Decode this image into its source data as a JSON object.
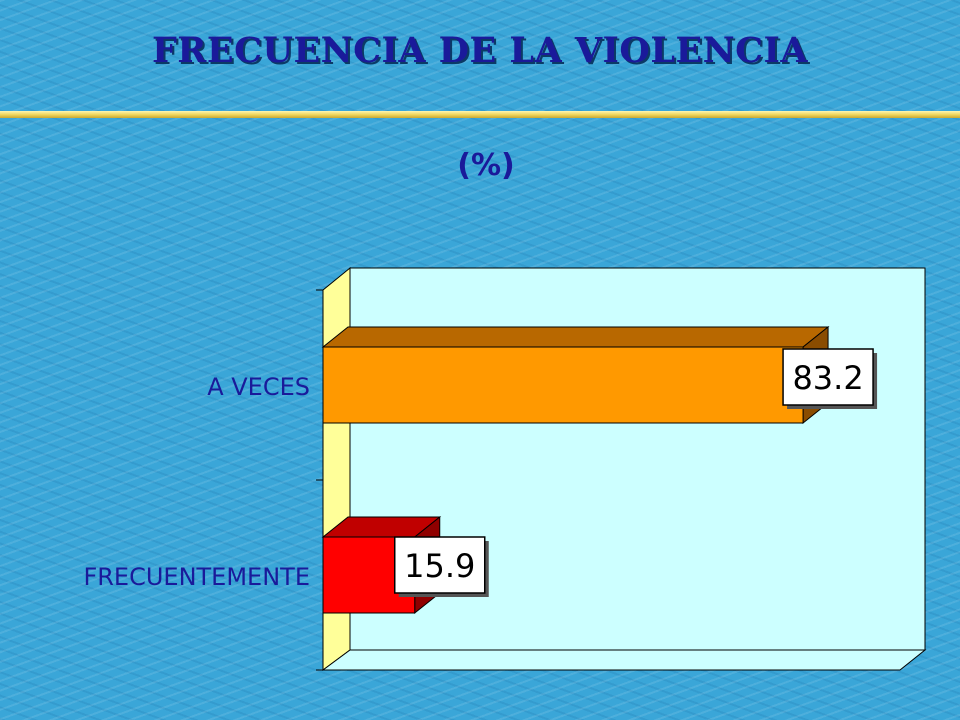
{
  "title": "FRECUENCIA DE LA VIOLENCIA",
  "subtitle": "(%)",
  "colors": {
    "background": "#3aa6d8",
    "title": "#1a1a9a",
    "plot_area": "#ccffff",
    "side_wall": "#ffff99",
    "a_veces": "#ff9900",
    "frecuentemente": "#ff0000"
  },
  "chart_data": {
    "type": "bar",
    "orientation": "horizontal",
    "style": "3d",
    "categories": [
      "A VECES",
      "FRECUENTEMENTE"
    ],
    "values": [
      83.2,
      15.9
    ],
    "data_labels": [
      "83.2",
      "15.9"
    ],
    "xlim": [
      0,
      100
    ],
    "grid": false,
    "legend": "none"
  }
}
